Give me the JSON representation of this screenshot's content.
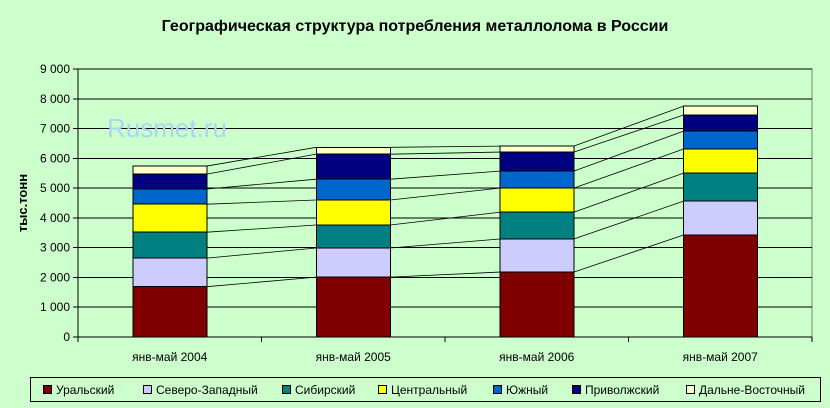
{
  "watermark": "Rusmet.ru",
  "chart_data": {
    "type": "bar",
    "stacked": true,
    "title": "Географическая структура потребления металлолома в России",
    "xlabel": "",
    "ylabel": "тыс.тонн",
    "categories": [
      "янв-май 2004",
      "янв-май 2005",
      "янв-май 2006",
      "янв-май 2007"
    ],
    "ylim": [
      0,
      9000
    ],
    "yticks": [
      0,
      1000,
      2000,
      3000,
      4000,
      5000,
      6000,
      7000,
      8000,
      9000
    ],
    "ytick_labels": [
      "0",
      "1 000",
      "2 000",
      "3 000",
      "4 000",
      "5 000",
      "6 000",
      "7 000",
      "8 000",
      "9 000"
    ],
    "grid": true,
    "series_lines": true,
    "legend": "bottom",
    "background": "#CCFFCC",
    "series": [
      {
        "name": "Уральский",
        "color": "#800000",
        "values": [
          1690,
          2010,
          2180,
          3420
        ]
      },
      {
        "name": "Северо-Западный",
        "color": "#CCCCFF",
        "values": [
          960,
          980,
          1110,
          1140
        ]
      },
      {
        "name": "Сибирский",
        "color": "#008080",
        "values": [
          870,
          770,
          900,
          940
        ]
      },
      {
        "name": "Центральный",
        "color": "#FFFF00",
        "values": [
          940,
          840,
          810,
          810
        ]
      },
      {
        "name": "Южный",
        "color": "#0066CC",
        "values": [
          510,
          700,
          570,
          600
        ]
      },
      {
        "name": "Приволжский",
        "color": "#000080",
        "values": [
          500,
          840,
          640,
          540
        ]
      },
      {
        "name": "Дальне-Восточный",
        "color": "#FFFFCC",
        "values": [
          270,
          230,
          200,
          300
        ]
      }
    ]
  }
}
